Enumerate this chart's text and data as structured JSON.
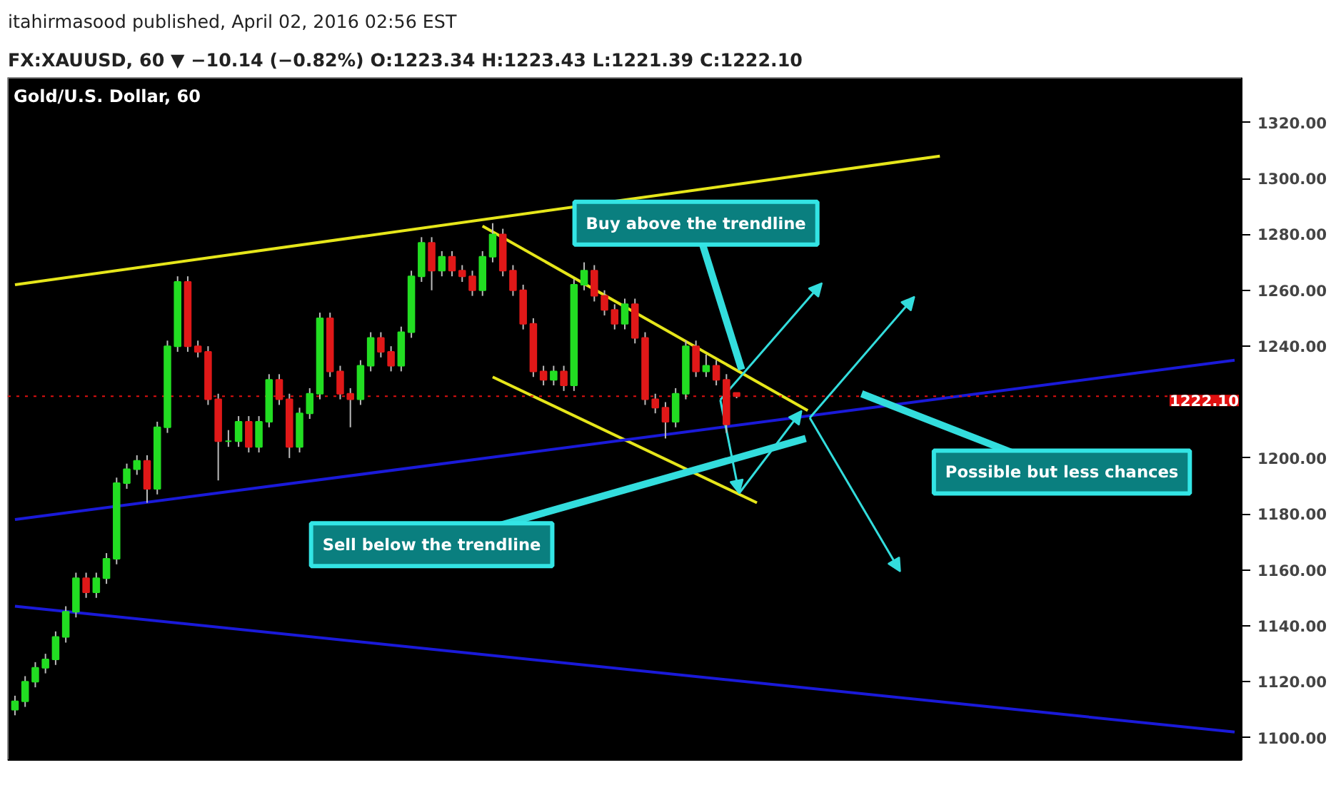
{
  "chart_data": {
    "type": "candlestick",
    "title": "Gold/U.S. Dollar, 60",
    "subtitle": "FX:XAUUSD, 60 ▼ −10.14 (−0.82%) O:1223.34 H:1223.43 L:1221.39 C:1222.10",
    "annotations": [
      "itahirmasood published, April 02, 2016 02:56 EST",
      "Buy above the trendline",
      "Sell below the trendline",
      "Possible but less chances"
    ],
    "categories": [
      null,
      null,
      null,
      null,
      null,
      null,
      null,
      null,
      null,
      null,
      null,
      null,
      null,
      null,
      null,
      null,
      null,
      null,
      null,
      null,
      null,
      null,
      null,
      null,
      null,
      null,
      null,
      null,
      null,
      null,
      null,
      null,
      null,
      null,
      null,
      null,
      null,
      null,
      null,
      null,
      null,
      null,
      null,
      null,
      null,
      null,
      null,
      null,
      null,
      null,
      null,
      null,
      null,
      null,
      null,
      null,
      null,
      null,
      null,
      null,
      null,
      null,
      null,
      null,
      null,
      null,
      null,
      null,
      null,
      null,
      null,
      null,
      null,
      null,
      null,
      null,
      null,
      null,
      null,
      null,
      null,
      null,
      null,
      null,
      null,
      null,
      null,
      null,
      null,
      null,
      null,
      null,
      null,
      null,
      null,
      null,
      null,
      null,
      null,
      null,
      null,
      null,
      null,
      null,
      null,
      null,
      null,
      null,
      null,
      null,
      null,
      null,
      null,
      null,
      null,
      null,
      null,
      null,
      null,
      null,
      null
    ],
    "ohlc": [
      [
        1110,
        1115,
        1108,
        1113
      ],
      [
        1113,
        1122,
        1111,
        1120
      ],
      [
        1120,
        1127,
        1118,
        1125
      ],
      [
        1125,
        1130,
        1123,
        1128
      ],
      [
        1128,
        1138,
        1126,
        1136
      ],
      [
        1136,
        1147,
        1134,
        1145
      ],
      [
        1145,
        1159,
        1143,
        1157
      ],
      [
        1157,
        1159,
        1150,
        1152
      ],
      [
        1152,
        1159,
        1150,
        1157
      ],
      [
        1157,
        1166,
        1155,
        1164
      ],
      [
        1164,
        1193,
        1162,
        1191
      ],
      [
        1191,
        1198,
        1189,
        1196
      ],
      [
        1196,
        1201,
        1194,
        1199
      ],
      [
        1199,
        1201,
        1184,
        1189
      ],
      [
        1189,
        1213,
        1187,
        1211
      ],
      [
        1211,
        1242,
        1209,
        1240
      ],
      [
        1240,
        1265,
        1238,
        1263
      ],
      [
        1263,
        1265,
        1238,
        1240
      ],
      [
        1240,
        1242,
        1236,
        1238
      ],
      [
        1238,
        1240,
        1219,
        1221
      ],
      [
        1221,
        1223,
        1192,
        1206
      ],
      [
        1206,
        1210,
        1204,
        1206
      ],
      [
        1206,
        1215,
        1204,
        1213
      ],
      [
        1213,
        1215,
        1202,
        1204
      ],
      [
        1204,
        1215,
        1202,
        1213
      ],
      [
        1213,
        1230,
        1211,
        1228
      ],
      [
        1228,
        1230,
        1219,
        1221
      ],
      [
        1221,
        1223,
        1200,
        1204
      ],
      [
        1204,
        1218,
        1202,
        1216
      ],
      [
        1216,
        1225,
        1214,
        1223
      ],
      [
        1223,
        1252,
        1221,
        1250
      ],
      [
        1250,
        1252,
        1229,
        1231
      ],
      [
        1231,
        1233,
        1221,
        1223
      ],
      [
        1223,
        1225,
        1211,
        1221
      ],
      [
        1221,
        1235,
        1219,
        1233
      ],
      [
        1233,
        1245,
        1231,
        1243
      ],
      [
        1243,
        1245,
        1236,
        1238
      ],
      [
        1238,
        1240,
        1231,
        1233
      ],
      [
        1233,
        1247,
        1231,
        1245
      ],
      [
        1245,
        1267,
        1243,
        1265
      ],
      [
        1265,
        1279,
        1263,
        1277
      ],
      [
        1277,
        1279,
        1260,
        1267
      ],
      [
        1267,
        1274,
        1265,
        1272
      ],
      [
        1272,
        1274,
        1265,
        1267
      ],
      [
        1267,
        1269,
        1263,
        1265
      ],
      [
        1265,
        1267,
        1258,
        1260
      ],
      [
        1260,
        1274,
        1258,
        1272
      ],
      [
        1272,
        1284,
        1270,
        1280
      ],
      [
        1280,
        1282,
        1265,
        1267
      ],
      [
        1267,
        1269,
        1258,
        1260
      ],
      [
        1260,
        1262,
        1246,
        1248
      ],
      [
        1248,
        1250,
        1229,
        1231
      ],
      [
        1231,
        1233,
        1226,
        1228
      ],
      [
        1228,
        1233,
        1226,
        1231
      ],
      [
        1231,
        1233,
        1224,
        1226
      ],
      [
        1226,
        1264,
        1224,
        1262
      ],
      [
        1262,
        1270,
        1260,
        1267
      ],
      [
        1267,
        1269,
        1256,
        1258
      ],
      [
        1258,
        1260,
        1251,
        1253
      ],
      [
        1253,
        1255,
        1246,
        1248
      ],
      [
        1248,
        1257,
        1246,
        1255
      ],
      [
        1255,
        1257,
        1241,
        1243
      ],
      [
        1243,
        1245,
        1219,
        1221
      ],
      [
        1221,
        1223,
        1216,
        1218
      ],
      [
        1218,
        1220,
        1207,
        1213
      ],
      [
        1213,
        1225,
        1211,
        1223
      ],
      [
        1223,
        1242,
        1221,
        1240
      ],
      [
        1240,
        1242,
        1229,
        1231
      ],
      [
        1231,
        1237,
        1229,
        1233
      ],
      [
        1233,
        1235,
        1226,
        1228
      ],
      [
        1228,
        1230,
        1209,
        1212
      ],
      [
        1223.34,
        1223.43,
        1221.39,
        1222.1
      ],
      null,
      null,
      null,
      null,
      null,
      null,
      null,
      null,
      null,
      null,
      null,
      null,
      null,
      null,
      null,
      null,
      null,
      null,
      null,
      null,
      null,
      null,
      null,
      null,
      null,
      null,
      null,
      null,
      null,
      null,
      null,
      null,
      null,
      null,
      null,
      null,
      null,
      null,
      null,
      null,
      null,
      null,
      null,
      null,
      null,
      null,
      null,
      null,
      null
    ],
    "series": [
      {
        "type": "line",
        "color": "#e6e61a",
        "values": [
          1262,
          null,
          null,
          null,
          null,
          null,
          null,
          null,
          null,
          null,
          null,
          null,
          null,
          null,
          null,
          null,
          null,
          null,
          null,
          null,
          null,
          null,
          null,
          null,
          null,
          null,
          null,
          null,
          null,
          null,
          null,
          null,
          null,
          null,
          null,
          null,
          null,
          null,
          null,
          null,
          null,
          null,
          null,
          null,
          null,
          null,
          null,
          null,
          null,
          null,
          null,
          null,
          null,
          null,
          null,
          null,
          null,
          null,
          null,
          null,
          null,
          null,
          null,
          null,
          null,
          null,
          null,
          null,
          null,
          null,
          null,
          null,
          null,
          null,
          null,
          null,
          null,
          null,
          null,
          null,
          null,
          null,
          null,
          null,
          null,
          null,
          null,
          null,
          null,
          null,
          null,
          1308,
          null,
          null,
          null,
          null,
          null,
          null,
          null,
          null,
          null,
          null,
          null,
          null,
          null,
          null,
          null,
          null,
          null,
          null,
          null,
          null,
          null,
          null,
          null,
          null,
          null,
          null,
          null,
          null,
          null
        ]
      },
      {
        "type": "line",
        "color": "#e6e61a",
        "values": [
          null,
          null,
          null,
          null,
          null,
          null,
          null,
          null,
          null,
          null,
          null,
          null,
          null,
          null,
          null,
          null,
          null,
          null,
          null,
          null,
          null,
          null,
          null,
          null,
          null,
          null,
          null,
          null,
          null,
          null,
          null,
          null,
          null,
          null,
          null,
          null,
          null,
          null,
          null,
          null,
          null,
          null,
          null,
          null,
          null,
          null,
          1283,
          null,
          null,
          null,
          null,
          null,
          null,
          null,
          null,
          null,
          null,
          null,
          null,
          null,
          null,
          null,
          null,
          null,
          null,
          null,
          null,
          null,
          null,
          null,
          null,
          null,
          null,
          null,
          null,
          null,
          null,
          null,
          1217,
          null,
          null,
          null,
          null,
          null,
          null,
          null,
          null,
          null,
          null,
          null,
          null,
          null,
          null,
          null,
          null,
          null,
          null,
          null,
          null,
          null,
          null,
          null,
          null,
          null,
          null,
          null,
          null,
          null,
          null,
          null,
          null,
          null,
          null,
          null,
          null,
          null,
          null,
          null,
          null,
          null,
          null
        ]
      },
      {
        "type": "line",
        "color": "#e6e61a",
        "values": [
          null,
          null,
          null,
          null,
          null,
          null,
          null,
          null,
          null,
          null,
          null,
          null,
          null,
          null,
          null,
          null,
          null,
          null,
          null,
          null,
          null,
          null,
          null,
          null,
          null,
          null,
          null,
          null,
          null,
          null,
          null,
          null,
          null,
          null,
          null,
          null,
          null,
          null,
          null,
          null,
          null,
          null,
          null,
          null,
          null,
          null,
          null,
          1229,
          null,
          null,
          null,
          null,
          null,
          null,
          null,
          null,
          null,
          null,
          null,
          null,
          null,
          null,
          null,
          null,
          null,
          null,
          null,
          null,
          null,
          null,
          null,
          null,
          null,
          1184,
          null,
          null,
          null,
          null,
          null,
          null,
          null,
          null,
          null,
          null,
          null,
          null,
          null,
          null,
          null,
          null,
          null,
          null,
          null,
          null,
          null,
          null,
          null,
          null,
          null,
          null,
          null,
          null,
          null,
          null,
          null,
          null,
          null,
          null,
          null,
          null,
          null,
          null,
          null,
          null,
          null,
          null,
          null,
          null,
          null,
          null,
          null
        ]
      },
      {
        "type": "line",
        "color": "#1a1ad9",
        "values": [
          1178,
          null,
          null,
          null,
          null,
          null,
          null,
          null,
          null,
          null,
          null,
          null,
          null,
          null,
          null,
          null,
          null,
          null,
          null,
          null,
          null,
          null,
          null,
          null,
          null,
          null,
          null,
          null,
          null,
          null,
          null,
          null,
          null,
          null,
          null,
          null,
          null,
          null,
          null,
          null,
          null,
          null,
          null,
          null,
          null,
          null,
          null,
          null,
          null,
          null,
          null,
          null,
          null,
          null,
          null,
          null,
          null,
          null,
          null,
          null,
          null,
          null,
          null,
          null,
          null,
          null,
          null,
          null,
          null,
          null,
          null,
          null,
          null,
          null,
          null,
          null,
          null,
          null,
          null,
          null,
          null,
          null,
          null,
          null,
          null,
          null,
          null,
          null,
          null,
          null,
          null,
          null,
          null,
          null,
          null,
          null,
          null,
          null,
          null,
          null,
          null,
          null,
          null,
          null,
          null,
          null,
          null,
          null,
          null,
          null,
          null,
          null,
          null,
          null,
          null,
          null,
          null,
          null,
          null,
          null,
          1235
        ]
      },
      {
        "type": "line",
        "color": "#1a1ad9",
        "values": [
          1147,
          null,
          null,
          null,
          null,
          null,
          null,
          null,
          null,
          null,
          null,
          null,
          null,
          null,
          null,
          null,
          null,
          null,
          null,
          null,
          null,
          null,
          null,
          null,
          null,
          null,
          null,
          null,
          null,
          null,
          null,
          null,
          null,
          null,
          null,
          null,
          null,
          null,
          null,
          null,
          null,
          null,
          null,
          null,
          null,
          null,
          null,
          null,
          null,
          null,
          null,
          null,
          null,
          null,
          null,
          null,
          null,
          null,
          null,
          null,
          null,
          null,
          null,
          null,
          null,
          null,
          null,
          null,
          null,
          null,
          null,
          null,
          null,
          null,
          null,
          null,
          null,
          null,
          null,
          null,
          null,
          null,
          null,
          null,
          null,
          null,
          null,
          null,
          null,
          null,
          null,
          null,
          null,
          null,
          null,
          null,
          null,
          null,
          null,
          null,
          null,
          null,
          null,
          null,
          null,
          null,
          null,
          null,
          null,
          null,
          null,
          null,
          null,
          null,
          null,
          null,
          null,
          null,
          null,
          null,
          1102
        ]
      }
    ],
    "ylim": [
      1092,
      1336
    ],
    "yticks": [
      {
        "value": 1100,
        "label": "1100.00"
      },
      {
        "value": 1120,
        "label": "1120.00"
      },
      {
        "value": 1140,
        "label": "1140.00"
      },
      {
        "value": 1160,
        "label": "1160.00"
      },
      {
        "value": 1180,
        "label": "1180.00"
      },
      {
        "value": 1200,
        "label": "1200.00"
      },
      {
        "value": 1240,
        "label": "1240.00"
      },
      {
        "value": 1260,
        "label": "1260.00"
      },
      {
        "value": 1280,
        "label": "1280.00"
      },
      {
        "value": 1300,
        "label": "1300.00"
      },
      {
        "value": 1320,
        "label": "1320.00"
      }
    ],
    "ref_lines": [
      {
        "axis": "y",
        "value": 1222.1,
        "label": "1222.10",
        "color": "#e01010",
        "line_style": "dotted"
      }
    ],
    "tick_labels": "y",
    "grid": false
  }
}
